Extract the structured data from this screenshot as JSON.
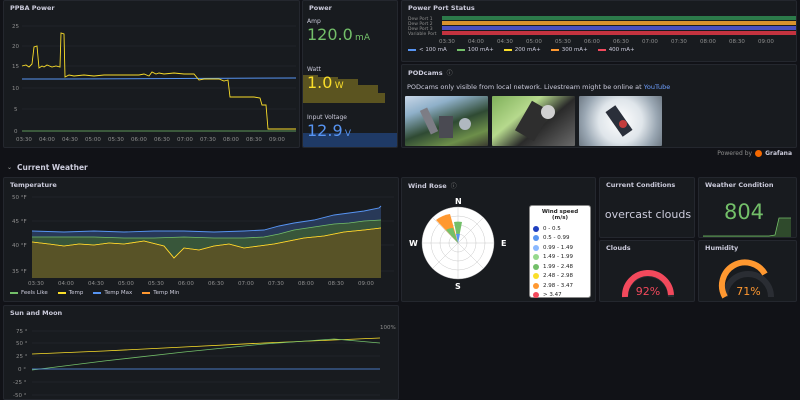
{
  "ppba": {
    "title": "PPBA Power",
    "y_ticks": [
      "25",
      "20",
      "15",
      "10",
      "5",
      "0"
    ],
    "x_ticks": [
      "03:30",
      "04:00",
      "04:30",
      "05:00",
      "05:30",
      "06:00",
      "06:30",
      "07:00",
      "07:30",
      "08:00",
      "08:30",
      "09:00"
    ]
  },
  "power": {
    "title": "Power",
    "amp_label": "Amp",
    "amp_value": "120.0",
    "amp_unit": "mA",
    "watt_label": "Watt",
    "watt_value": "1.0",
    "watt_unit": "W",
    "voltage_label": "Input Voltage",
    "voltage_value": "12.9",
    "voltage_unit": "V",
    "colors": {
      "amp": "#73bf69",
      "watt": "#fade2a",
      "voltage": "#5794f2"
    }
  },
  "port_status": {
    "title": "Power Port Status",
    "row_labels": [
      "Dew Port 1",
      "Dew Port 2",
      "Dew Port 3",
      "Variable Port"
    ],
    "x_ticks": [
      "03:30",
      "04:00",
      "04:30",
      "05:00",
      "05:30",
      "06:00",
      "06:30",
      "07:00",
      "07:30",
      "08:00",
      "08:30",
      "09:00"
    ],
    "legend": [
      {
        "label": "< 100 mA",
        "color": "#5794f2"
      },
      {
        "label": "100 mA+",
        "color": "#73bf69"
      },
      {
        "label": "200 mA+",
        "color": "#fade2a"
      },
      {
        "label": "300 mA+",
        "color": "#ff9830"
      },
      {
        "label": "400 mA+",
        "color": "#f2495c"
      }
    ]
  },
  "podcams": {
    "title": "PODcams",
    "info_icon": "info-icon",
    "text": "PODcams only visible from local network. Livestream might be online at",
    "link": "YouTube"
  },
  "powered_by": "Powered by",
  "grafana": "Grafana",
  "section": {
    "title": "Current Weather"
  },
  "temperature": {
    "title": "Temperature",
    "y_ticks": [
      "50 °F",
      "45 °F",
      "40 °F",
      "35 °F"
    ],
    "x_ticks": [
      "03:30",
      "04:00",
      "04:30",
      "05:00",
      "05:30",
      "06:00",
      "06:30",
      "07:00",
      "07:30",
      "08:00",
      "08:30",
      "09:00"
    ],
    "legend": [
      {
        "label": "Feels Like",
        "color": "#73bf69"
      },
      {
        "label": "Temp",
        "color": "#fade2a"
      },
      {
        "label": "Temp Max",
        "color": "#5794f2"
      },
      {
        "label": "Temp Min",
        "color": "#ff9830"
      }
    ]
  },
  "wind_rose": {
    "title": "Wind Rose",
    "directions": {
      "n": "N",
      "e": "E",
      "s": "S",
      "w": "W"
    },
    "legend_title": "Wind speed (m/s)",
    "legend": [
      {
        "label": "0 - 0.5",
        "color": "#1f3fbf"
      },
      {
        "label": "0.5 - 0.99",
        "color": "#5794f2"
      },
      {
        "label": "0.99 - 1.49",
        "color": "#8ab8ff"
      },
      {
        "label": "1.49 - 1.99",
        "color": "#96d98d"
      },
      {
        "label": "1.99 - 2.48",
        "color": "#73bf69"
      },
      {
        "label": "2.48 - 2.98",
        "color": "#fade2a"
      },
      {
        "label": "2.98 - 3.47",
        "color": "#ff9830"
      },
      {
        "label": "> 3.47",
        "color": "#f2495c"
      }
    ]
  },
  "current_conditions": {
    "title": "Current Conditions",
    "value": "overcast clouds"
  },
  "weather_condition": {
    "title": "Weather Condition",
    "value": "804"
  },
  "clouds": {
    "title": "Clouds",
    "value": "92%",
    "percent": 92
  },
  "humidity": {
    "title": "Humidity",
    "value": "71%",
    "percent": 71
  },
  "sun_moon": {
    "title": "Sun and Moon",
    "y_ticks": [
      "75 °",
      "50 °",
      "25 °",
      "0 °",
      "-25 °",
      "-50 °"
    ],
    "right_label": "100%"
  }
}
